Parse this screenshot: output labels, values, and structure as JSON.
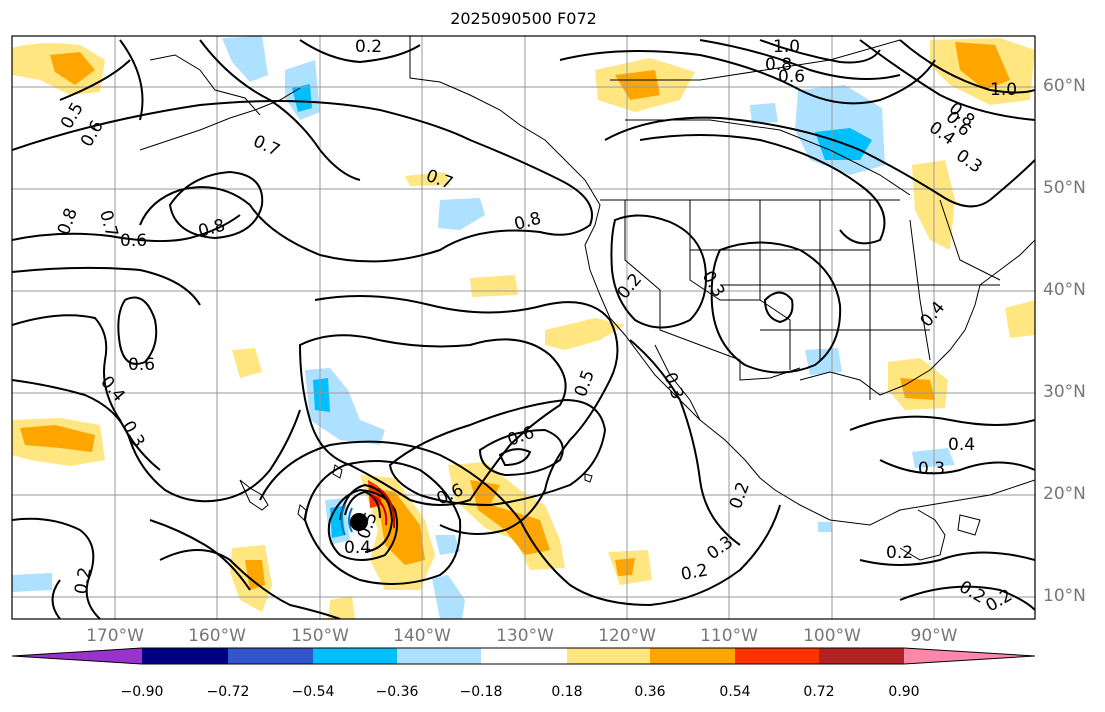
{
  "title": "2025090500 F072",
  "latitude_labels": [
    "60°N",
    "50°N",
    "40°N",
    "30°N",
    "20°N",
    "10°N"
  ],
  "longitude_labels": [
    "170°W",
    "160°W",
    "150°W",
    "140°W",
    "130°W",
    "120°W",
    "110°W",
    "100°W",
    "90°W"
  ],
  "colorbar": {
    "ticks": [
      "−0.90",
      "−0.72",
      "−0.54",
      "−0.36",
      "−0.18",
      "0.18",
      "0.36",
      "0.54",
      "0.72",
      "0.90"
    ],
    "colors": [
      "#9933cc",
      "#000080",
      "#3355cc",
      "#00bfff",
      "#aee0ff",
      "#ffffff",
      "#ffe680",
      "#ffa500",
      "#ff3300",
      "#b22222",
      "#ff88aa"
    ]
  },
  "contour_labels": [
    "0.2",
    "1.0",
    "0.8",
    "0.6",
    "1.0",
    "0.8",
    "0.6",
    "0.4",
    "0.3",
    "0.5",
    "0.6",
    "0.7",
    "0.7",
    "0.8",
    "0.8",
    "0.7",
    "0.8",
    "0.6",
    "0.6",
    "0.4",
    "0.3",
    "0.2",
    "0.3",
    "0.3",
    "0.5",
    "0.6",
    "0.6",
    "0.4",
    "0.5",
    "0.4",
    "0.4",
    "0.3",
    "0.2",
    "0.2",
    "0.3",
    "0.2",
    "0.2",
    "0.2",
    "0.2"
  ],
  "storm_marker": "tropical-cyclone-center"
}
